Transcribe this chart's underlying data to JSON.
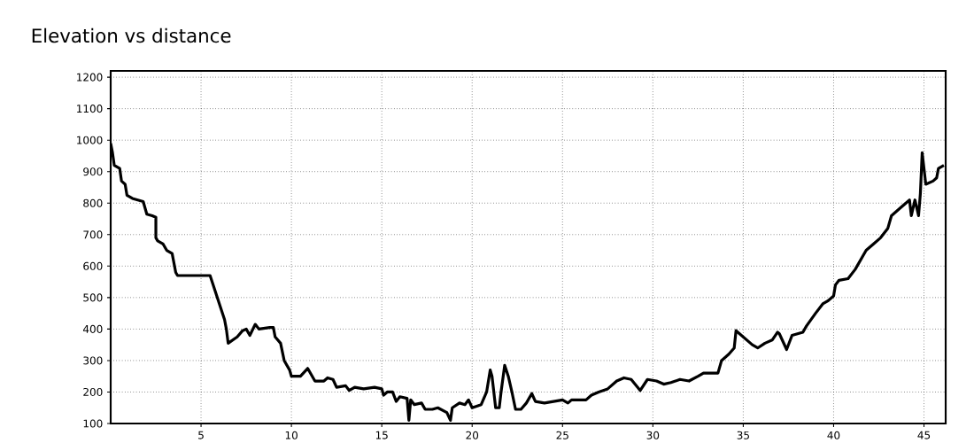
{
  "chart_data": {
    "type": "line",
    "title": "Elevation vs distance",
    "color": "#000000",
    "grid": true,
    "line_style": "solid",
    "marker": "none",
    "xlim": [
      0,
      46.2
    ],
    "ylim": [
      100,
      1220
    ],
    "xticks": [
      5,
      10,
      15,
      20,
      25,
      30,
      35,
      40,
      45
    ],
    "yticks": [
      100,
      200,
      300,
      400,
      500,
      600,
      700,
      800,
      900,
      1000,
      1100,
      1200
    ],
    "x": [
      0,
      0.1,
      0.2,
      0.5,
      0.6,
      0.8,
      0.9,
      1.2,
      1.8,
      2.0,
      2.3,
      2.5,
      2.5,
      2.6,
      2.9,
      3.1,
      3.4,
      3.6,
      3.7,
      4.5,
      5.5,
      6.3,
      6.4,
      6.5,
      7.0,
      7.3,
      7.5,
      7.7,
      8.0,
      8.2,
      8.8,
      9.0,
      9.1,
      9.4,
      9.6,
      9.9,
      10.0,
      10.5,
      10.9,
      11.3,
      11.8,
      12.0,
      12.3,
      12.5,
      13.0,
      13.2,
      13.5,
      14.0,
      14.6,
      15.0,
      15.1,
      15.3,
      15.6,
      15.8,
      16.0,
      16.4,
      16.5,
      16.6,
      16.8,
      17.2,
      17.4,
      17.8,
      18.1,
      18.6,
      18.8,
      18.9,
      19.3,
      19.6,
      19.8,
      20.0,
      20.5,
      20.8,
      21.0,
      21.1,
      21.3,
      21.5,
      21.6,
      21.8,
      22.0,
      22.2,
      22.4,
      22.7,
      23.0,
      23.3,
      23.5,
      24.0,
      24.5,
      25.0,
      25.3,
      25.5,
      26.3,
      26.6,
      27.0,
      27.5,
      28.0,
      28.4,
      28.8,
      29.3,
      29.7,
      30.2,
      30.6,
      31.0,
      31.5,
      32.0,
      32.5,
      32.8,
      33.6,
      33.8,
      34.2,
      34.5,
      34.6,
      35.5,
      35.8,
      36.2,
      36.6,
      36.9,
      37.0,
      37.4,
      37.7,
      38.3,
      38.5,
      39.0,
      39.4,
      39.7,
      40.0,
      40.1,
      40.3,
      40.8,
      41.2,
      41.5,
      41.8,
      42.2,
      42.6,
      43.0,
      43.2,
      43.8,
      44.2,
      44.3,
      44.5,
      44.7,
      44.8,
      44.9,
      45.1,
      45.5,
      45.7,
      45.8,
      46.1
    ],
    "values": [
      990,
      960,
      920,
      910,
      870,
      860,
      825,
      815,
      805,
      765,
      760,
      755,
      690,
      680,
      670,
      650,
      640,
      580,
      570,
      570,
      570,
      430,
      400,
      355,
      375,
      395,
      400,
      380,
      415,
      400,
      405,
      405,
      375,
      355,
      300,
      270,
      250,
      250,
      275,
      235,
      235,
      245,
      240,
      215,
      220,
      205,
      215,
      210,
      215,
      210,
      190,
      200,
      200,
      170,
      185,
      180,
      110,
      175,
      160,
      165,
      145,
      145,
      150,
      135,
      110,
      150,
      165,
      160,
      175,
      150,
      160,
      200,
      270,
      250,
      150,
      150,
      200,
      285,
      250,
      200,
      145,
      145,
      165,
      195,
      170,
      165,
      170,
      175,
      165,
      175,
      175,
      190,
      200,
      210,
      235,
      245,
      240,
      205,
      240,
      235,
      225,
      230,
      240,
      235,
      250,
      260,
      260,
      300,
      320,
      340,
      395,
      350,
      340,
      355,
      365,
      390,
      385,
      335,
      380,
      390,
      410,
      450,
      480,
      490,
      505,
      540,
      555,
      560,
      590,
      620,
      650,
      670,
      690,
      720,
      760,
      790,
      810,
      760,
      810,
      760,
      830,
      960,
      860,
      870,
      880,
      910,
      920
    ]
  }
}
